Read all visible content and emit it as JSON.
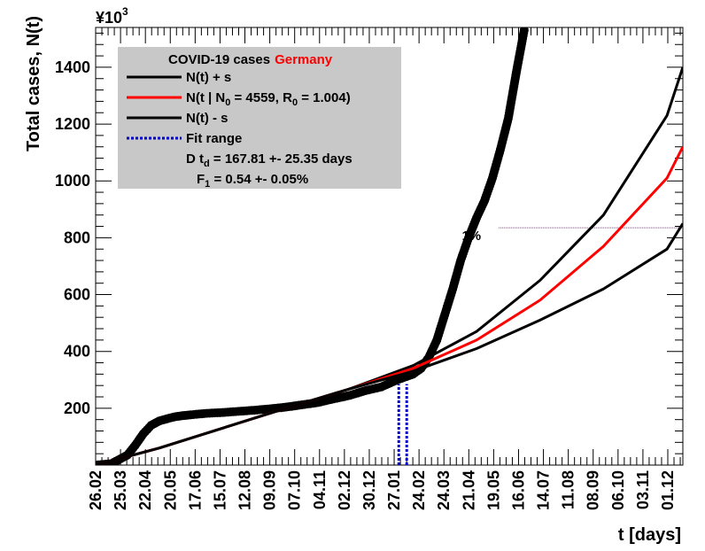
{
  "chart_data": {
    "type": "line",
    "ylabel": "Total cases, N(t)",
    "xlabel": "t [days]",
    "y_multiplier": "¥10",
    "y_multiplier_exp": "3",
    "ylim": [
      0,
      1540
    ],
    "yticks": [
      200,
      400,
      600,
      800,
      1000,
      1200,
      1400
    ],
    "xlim": [
      0,
      370
    ],
    "x_tick_labels": [
      "26.02",
      "25.03",
      "22.04",
      "20.05",
      "17.06",
      "15.07",
      "12.08",
      "09.09",
      "07.10",
      "04.11",
      "02.12",
      "30.12",
      "27.01",
      "24.02",
      "24.03",
      "21.04",
      "19.05",
      "16.06",
      "14.07",
      "11.08",
      "08.09",
      "06.10",
      "03.11",
      "01.12"
    ],
    "x_tick_days": [
      0,
      28,
      56,
      84,
      112,
      140,
      168,
      196,
      224,
      252,
      280,
      308,
      336,
      364,
      392,
      420,
      448,
      476,
      504,
      532,
      560,
      588,
      616,
      644
    ],
    "grid": false,
    "legend": {
      "placement": "top-left",
      "title_prefix": "COVID-19 cases",
      "title_country": "Germany",
      "country_color": "#ff0000",
      "entry_upper": "N(t) + s",
      "entry_fit": "N(t | N",
      "entry_fit_sub": "0",
      "entry_fit_rest": " = 4559, R",
      "entry_fit_sub2": "0",
      "entry_fit_tail": " =  1.004)",
      "entry_lower": "N(t) - s",
      "entry_range": "Fit range",
      "stat_td_prefix": "D t",
      "stat_td_sub": "d",
      "stat_td_value": " = 167.81 +- 25.35 days",
      "stat_f_prefix": "F",
      "stat_f_sub": "1",
      "stat_f_value": " =  0.54 +- 0.05%"
    },
    "annotation_1pct": {
      "label": "1%",
      "y": 835,
      "x_start": 254,
      "color": "#cc00cc"
    },
    "fit_range": [
      191,
      196
    ],
    "series": [
      {
        "name": "data",
        "color": "#000000",
        "x": [
          0,
          10,
          20,
          25,
          30,
          35,
          40,
          45,
          50,
          55,
          60,
          70,
          80,
          90,
          100,
          110,
          120,
          130,
          140,
          150,
          160,
          170,
          180,
          190,
          195,
          200,
          205,
          210,
          215,
          220,
          225,
          230,
          235,
          240,
          245,
          250,
          255,
          260,
          265,
          270
        ],
        "y": [
          0,
          5,
          35,
          70,
          110,
          140,
          155,
          163,
          170,
          174,
          177,
          182,
          185,
          189,
          193,
          198,
          204,
          212,
          220,
          233,
          245,
          262,
          275,
          300,
          310,
          320,
          340,
          380,
          440,
          530,
          620,
          720,
          800,
          870,
          930,
          1010,
          1110,
          1220,
          1380,
          1530
        ]
      },
      {
        "name": "N(t) + s",
        "color": "#000000",
        "x": [
          0,
          40,
          80,
          120,
          160,
          200,
          240,
          280,
          320,
          360,
          370
        ],
        "y": [
          0,
          60,
          130,
          200,
          268,
          350,
          470,
          650,
          880,
          1230,
          1400
        ]
      },
      {
        "name": "N(t | N0 = 4559, R0 = 1.004)",
        "color": "#ff0000",
        "x": [
          0,
          40,
          80,
          120,
          160,
          200,
          240,
          280,
          320,
          360,
          370
        ],
        "y": [
          0,
          60,
          130,
          200,
          268,
          340,
          440,
          580,
          770,
          1010,
          1120
        ]
      },
      {
        "name": "N(t) - s",
        "color": "#000000",
        "x": [
          0,
          40,
          80,
          120,
          160,
          200,
          240,
          280,
          320,
          360,
          370
        ],
        "y": [
          0,
          60,
          130,
          200,
          268,
          330,
          410,
          510,
          620,
          760,
          850
        ]
      }
    ]
  }
}
